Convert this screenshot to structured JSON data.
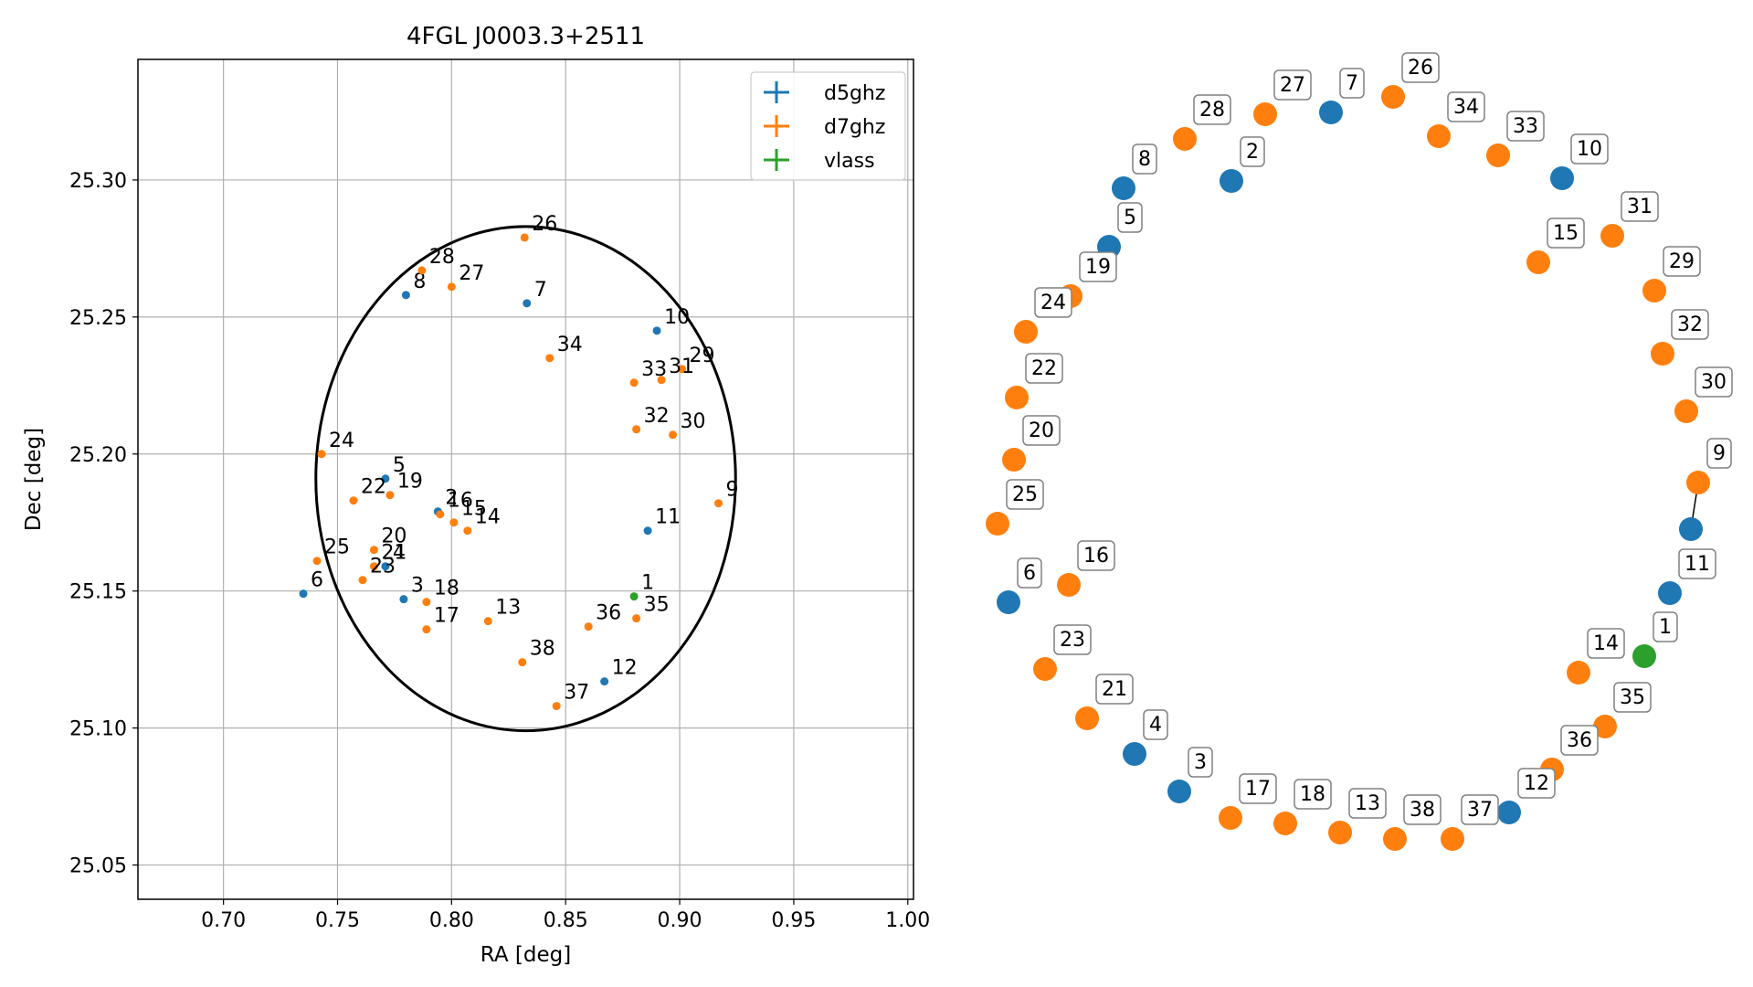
{
  "colors": {
    "d5ghz": "#1f77b4",
    "d7ghz": "#ff7f0e",
    "vlass": "#2ca02c",
    "grid": "#b0b0b0",
    "circle": "#000000",
    "label_box_border": "#808080"
  },
  "chart_data": [
    {
      "type": "scatter",
      "title": "4FGL J0003.3+2511",
      "xlabel": "RA [deg]",
      "ylabel": "Dec [deg]",
      "xlim": [
        0.6625,
        1.0025
      ],
      "ylim": [
        25.0375,
        25.344
      ],
      "xticks": [
        0.7,
        0.75,
        0.8,
        0.85,
        0.9,
        0.95,
        1.0
      ],
      "xtick_labels": [
        "0.70",
        "0.75",
        "0.80",
        "0.85",
        "0.90",
        "0.95",
        "1.00"
      ],
      "yticks": [
        25.05,
        25.1,
        25.15,
        25.2,
        25.25,
        25.3
      ],
      "ytick_labels": [
        "25.05",
        "25.10",
        "25.15",
        "25.20",
        "25.25",
        "25.30"
      ],
      "grid": true,
      "legend_position": "top-right",
      "legend": [
        "d5ghz",
        "d7ghz",
        "vlass"
      ],
      "region_circle": {
        "ra": 0.8325,
        "dec": 25.191,
        "radius_deg": 0.092
      },
      "series": [
        {
          "name": "d5ghz",
          "points": [
            {
              "id": "2",
              "ra": 0.794,
              "dec": 25.179
            },
            {
              "id": "3",
              "ra": 0.779,
              "dec": 25.147
            },
            {
              "id": "4",
              "ra": 0.771,
              "dec": 25.159
            },
            {
              "id": "5",
              "ra": 0.771,
              "dec": 25.191
            },
            {
              "id": "6",
              "ra": 0.735,
              "dec": 25.149
            },
            {
              "id": "7",
              "ra": 0.833,
              "dec": 25.255
            },
            {
              "id": "8",
              "ra": 0.78,
              "dec": 25.258
            },
            {
              "id": "10",
              "ra": 0.89,
              "dec": 25.245
            },
            {
              "id": "11",
              "ra": 0.886,
              "dec": 25.172
            },
            {
              "id": "12",
              "ra": 0.867,
              "dec": 25.117
            }
          ]
        },
        {
          "name": "d7ghz",
          "points": [
            {
              "id": "13",
              "ra": 0.816,
              "dec": 25.139
            },
            {
              "id": "14",
              "ra": 0.807,
              "dec": 25.172
            },
            {
              "id": "15",
              "ra": 0.801,
              "dec": 25.175
            },
            {
              "id": "16",
              "ra": 0.795,
              "dec": 25.178
            },
            {
              "id": "17",
              "ra": 0.789,
              "dec": 25.136
            },
            {
              "id": "18",
              "ra": 0.789,
              "dec": 25.146
            },
            {
              "id": "19",
              "ra": 0.773,
              "dec": 25.185
            },
            {
              "id": "20",
              "ra": 0.766,
              "dec": 25.165
            },
            {
              "id": "21",
              "ra": 0.766,
              "dec": 25.159
            },
            {
              "id": "22",
              "ra": 0.757,
              "dec": 25.183
            },
            {
              "id": "23",
              "ra": 0.761,
              "dec": 25.154
            },
            {
              "id": "24",
              "ra": 0.743,
              "dec": 25.2
            },
            {
              "id": "25",
              "ra": 0.741,
              "dec": 25.161
            },
            {
              "id": "26",
              "ra": 0.832,
              "dec": 25.279
            },
            {
              "id": "27",
              "ra": 0.8,
              "dec": 25.261
            },
            {
              "id": "28",
              "ra": 0.787,
              "dec": 25.267
            },
            {
              "id": "29",
              "ra": 0.901,
              "dec": 25.231
            },
            {
              "id": "30",
              "ra": 0.897,
              "dec": 25.207
            },
            {
              "id": "31",
              "ra": 0.892,
              "dec": 25.227
            },
            {
              "id": "32",
              "ra": 0.881,
              "dec": 25.209
            },
            {
              "id": "33",
              "ra": 0.88,
              "dec": 25.226
            },
            {
              "id": "34",
              "ra": 0.843,
              "dec": 25.235
            },
            {
              "id": "35",
              "ra": 0.881,
              "dec": 25.14
            },
            {
              "id": "36",
              "ra": 0.86,
              "dec": 25.137
            },
            {
              "id": "37",
              "ra": 0.846,
              "dec": 25.108
            },
            {
              "id": "38",
              "ra": 0.831,
              "dec": 25.124
            },
            {
              "id": "9",
              "ra": 0.917,
              "dec": 25.182
            }
          ]
        },
        {
          "name": "vlass",
          "points": [
            {
              "id": "1",
              "ra": 0.88,
              "dec": 25.148
            }
          ]
        }
      ]
    },
    {
      "type": "network",
      "nodes": [
        {
          "id": "1",
          "series": "vlass"
        },
        {
          "id": "2",
          "series": "d5ghz"
        },
        {
          "id": "3",
          "series": "d5ghz"
        },
        {
          "id": "4",
          "series": "d5ghz"
        },
        {
          "id": "5",
          "series": "d5ghz"
        },
        {
          "id": "6",
          "series": "d5ghz"
        },
        {
          "id": "7",
          "series": "d5ghz"
        },
        {
          "id": "8",
          "series": "d5ghz"
        },
        {
          "id": "9",
          "series": "d7ghz"
        },
        {
          "id": "9b",
          "series": "d5ghz"
        },
        {
          "id": "10",
          "series": "d5ghz"
        },
        {
          "id": "11",
          "series": "d5ghz"
        },
        {
          "id": "12",
          "series": "d5ghz"
        },
        {
          "id": "13",
          "series": "d7ghz"
        },
        {
          "id": "14",
          "series": "d7ghz"
        },
        {
          "id": "15",
          "series": "d7ghz"
        },
        {
          "id": "16",
          "series": "d7ghz"
        },
        {
          "id": "17",
          "series": "d7ghz"
        },
        {
          "id": "18",
          "series": "d7ghz"
        },
        {
          "id": "19",
          "series": "d7ghz"
        },
        {
          "id": "20",
          "series": "d7ghz"
        },
        {
          "id": "21",
          "series": "d7ghz"
        },
        {
          "id": "22",
          "series": "d7ghz"
        },
        {
          "id": "23",
          "series": "d7ghz"
        },
        {
          "id": "24",
          "series": "d7ghz"
        },
        {
          "id": "25",
          "series": "d7ghz"
        },
        {
          "id": "26",
          "series": "d7ghz"
        },
        {
          "id": "27",
          "series": "d7ghz"
        },
        {
          "id": "28",
          "series": "d7ghz"
        },
        {
          "id": "29",
          "series": "d7ghz"
        },
        {
          "id": "30",
          "series": "d7ghz"
        },
        {
          "id": "31",
          "series": "d7ghz"
        },
        {
          "id": "32",
          "series": "d7ghz"
        },
        {
          "id": "33",
          "series": "d7ghz"
        },
        {
          "id": "34",
          "series": "d7ghz"
        },
        {
          "id": "35",
          "series": "d7ghz"
        },
        {
          "id": "36",
          "series": "d7ghz"
        },
        {
          "id": "37",
          "series": "d7ghz"
        },
        {
          "id": "38",
          "series": "d7ghz"
        }
      ],
      "edges": [
        [
          "9",
          "9b"
        ]
      ]
    }
  ]
}
